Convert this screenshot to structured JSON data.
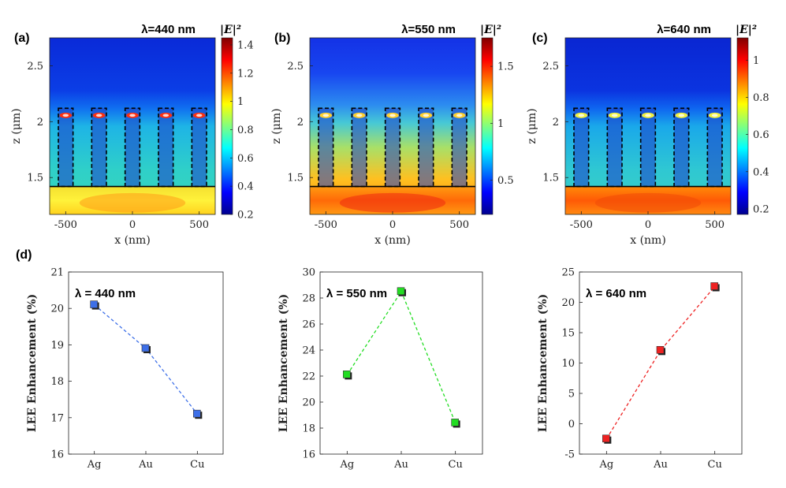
{
  "colors": {
    "jet": [
      "#00008f",
      "#0000ff",
      "#0080ff",
      "#00ffff",
      "#80ff80",
      "#ffff00",
      "#ff8000",
      "#ff0000",
      "#800000"
    ],
    "ag_au_cu_440": "#3d6fe8",
    "line_550": "#22dd22",
    "line_640": "#ee2222"
  },
  "chart_data": [
    {
      "type": "heatmap",
      "panel_label": "(a)",
      "title": "λ=440 nm",
      "colorbar_label": "|E|²",
      "colorbar_range": [
        0.2,
        1.45
      ],
      "colorbar_ticks": [
        "0.2",
        "0.4",
        "0.6",
        "0.8",
        "1",
        "1.2",
        "1.4"
      ],
      "xlabel": "x (nm)",
      "ylabel": "z (μm)",
      "xlim": [
        -620,
        620
      ],
      "ylim": [
        1.17,
        2.75
      ],
      "xticks": [
        "-500",
        "0",
        "500"
      ],
      "yticks": [
        "1.5",
        "2",
        "2.5"
      ],
      "pillar_centers_nm": [
        -500,
        -250,
        0,
        250,
        500
      ],
      "pillar_width_nm": 110,
      "pillar_z_range_um": [
        1.42,
        2.12
      ],
      "substrate_z_um": 1.42
    },
    {
      "type": "heatmap",
      "panel_label": "(b)",
      "title": "λ=550 nm",
      "colorbar_label": "|E|²",
      "colorbar_range": [
        0.2,
        1.75
      ],
      "colorbar_ticks": [
        "0.5",
        "1",
        "1.5"
      ],
      "xlabel": "x (nm)",
      "ylabel": "z (μm)",
      "xlim": [
        -620,
        620
      ],
      "ylim": [
        1.17,
        2.75
      ],
      "xticks": [
        "-500",
        "0",
        "500"
      ],
      "yticks": [
        "1.5",
        "2",
        "2.5"
      ],
      "pillar_centers_nm": [
        -500,
        -250,
        0,
        250,
        500
      ],
      "pillar_width_nm": 110,
      "pillar_z_range_um": [
        1.42,
        2.12
      ],
      "substrate_z_um": 1.42
    },
    {
      "type": "heatmap",
      "panel_label": "(c)",
      "title": "λ=640 nm",
      "colorbar_label": "|E|²",
      "colorbar_range": [
        0.17,
        1.12
      ],
      "colorbar_ticks": [
        "0.2",
        "0.4",
        "0.6",
        "0.8",
        "1"
      ],
      "xlabel": "x (nm)",
      "ylabel": "z (μm)",
      "xlim": [
        -620,
        620
      ],
      "ylim": [
        1.17,
        2.75
      ],
      "xticks": [
        "-500",
        "0",
        "500"
      ],
      "yticks": [
        "1.5",
        "2",
        "2.5"
      ],
      "pillar_centers_nm": [
        -500,
        -250,
        0,
        250,
        500
      ],
      "pillar_width_nm": 110,
      "pillar_z_range_um": [
        1.42,
        2.12
      ],
      "substrate_z_um": 1.42
    },
    {
      "type": "line",
      "panel_label": "(d)",
      "annotation": "λ = 440 nm",
      "categories": [
        "Ag",
        "Au",
        "Cu"
      ],
      "values": [
        20.1,
        18.9,
        17.1
      ],
      "ylabel": "LEE Enhancement (%)",
      "ylim": [
        16,
        21
      ],
      "yticks": [
        "16",
        "17",
        "18",
        "19",
        "20",
        "21"
      ],
      "color": "#3d6fe8"
    },
    {
      "type": "line",
      "panel_label": "",
      "annotation": "λ = 550 nm",
      "categories": [
        "Ag",
        "Au",
        "Cu"
      ],
      "values": [
        22.1,
        28.5,
        18.4
      ],
      "ylabel": "LEE Enhancement (%)",
      "ylim": [
        16,
        30
      ],
      "yticks": [
        "16",
        "18",
        "20",
        "22",
        "24",
        "26",
        "28",
        "30"
      ],
      "color": "#22dd22"
    },
    {
      "type": "line",
      "panel_label": "",
      "annotation": "λ = 640 nm",
      "categories": [
        "Ag",
        "Au",
        "Cu"
      ],
      "values": [
        -2.5,
        12.1,
        22.6
      ],
      "ylabel": "LEE Enhancement (%)",
      "ylim": [
        -5,
        25
      ],
      "yticks": [
        "-5",
        "0",
        "5",
        "10",
        "15",
        "20",
        "25"
      ],
      "color": "#ee2222"
    }
  ]
}
